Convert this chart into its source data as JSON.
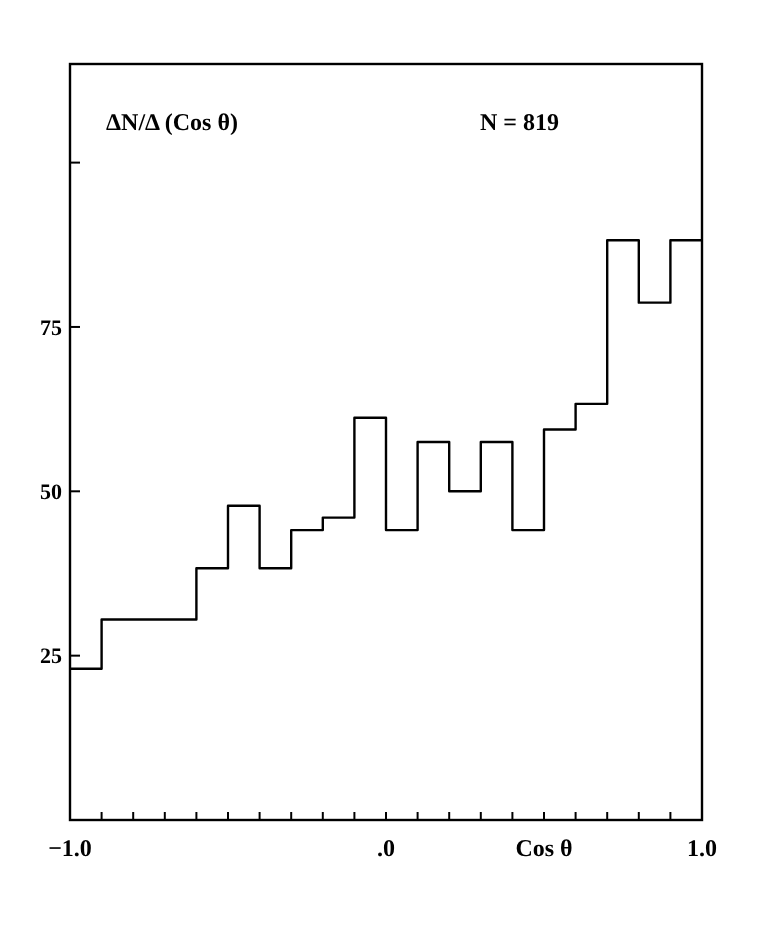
{
  "chart_data": {
    "type": "histogram",
    "xlabel": "Cos θ",
    "annotations": [
      "ΔN/Δ (Cos θ)",
      "N = 819"
    ],
    "bins": [
      -1.0,
      -0.9,
      -0.8,
      -0.7,
      -0.6,
      -0.5,
      -0.4,
      -0.3,
      -0.2,
      -0.1,
      0.0,
      0.1,
      0.2,
      0.3,
      0.4,
      0.5,
      0.6,
      0.7,
      0.8,
      0.9,
      1.0
    ],
    "values": [
      23,
      30.5,
      30.5,
      30.5,
      38.3,
      47.8,
      38.3,
      44.1,
      46,
      61.2,
      44.1,
      57.5,
      50,
      57.5,
      44.1,
      59.4,
      63.3,
      88.2,
      78.7,
      88.2
    ],
    "color": "#000000",
    "xlim": [
      -1,
      1
    ],
    "xticks": [
      {
        "value": -1.0,
        "label": "−1.0"
      },
      {
        "value": -0.9,
        "label": null
      },
      {
        "value": -0.8,
        "label": null
      },
      {
        "value": -0.7,
        "label": null
      },
      {
        "value": -0.6,
        "label": null
      },
      {
        "value": -0.5,
        "label": null
      },
      {
        "value": -0.4,
        "label": null
      },
      {
        "value": -0.3,
        "label": null
      },
      {
        "value": -0.2,
        "label": null
      },
      {
        "value": -0.1,
        "label": null
      },
      {
        "value": 0,
        "label": ".0"
      },
      {
        "value": 0.1,
        "label": null
      },
      {
        "value": 0.2,
        "label": null
      },
      {
        "value": 0.3,
        "label": null
      },
      {
        "value": 0.4,
        "label": null
      },
      {
        "value": 0.5,
        "label": null
      },
      {
        "value": 0.6,
        "label": null
      },
      {
        "value": 0.7,
        "label": null
      },
      {
        "value": 0.8,
        "label": null
      },
      {
        "value": 0.9,
        "label": null
      },
      {
        "value": 1,
        "label": "1.0"
      }
    ],
    "ylim": [
      0,
      115
    ],
    "yticks": [
      25,
      50,
      75,
      {
        "value": 100,
        "label": null
      }
    ],
    "grid": false
  }
}
